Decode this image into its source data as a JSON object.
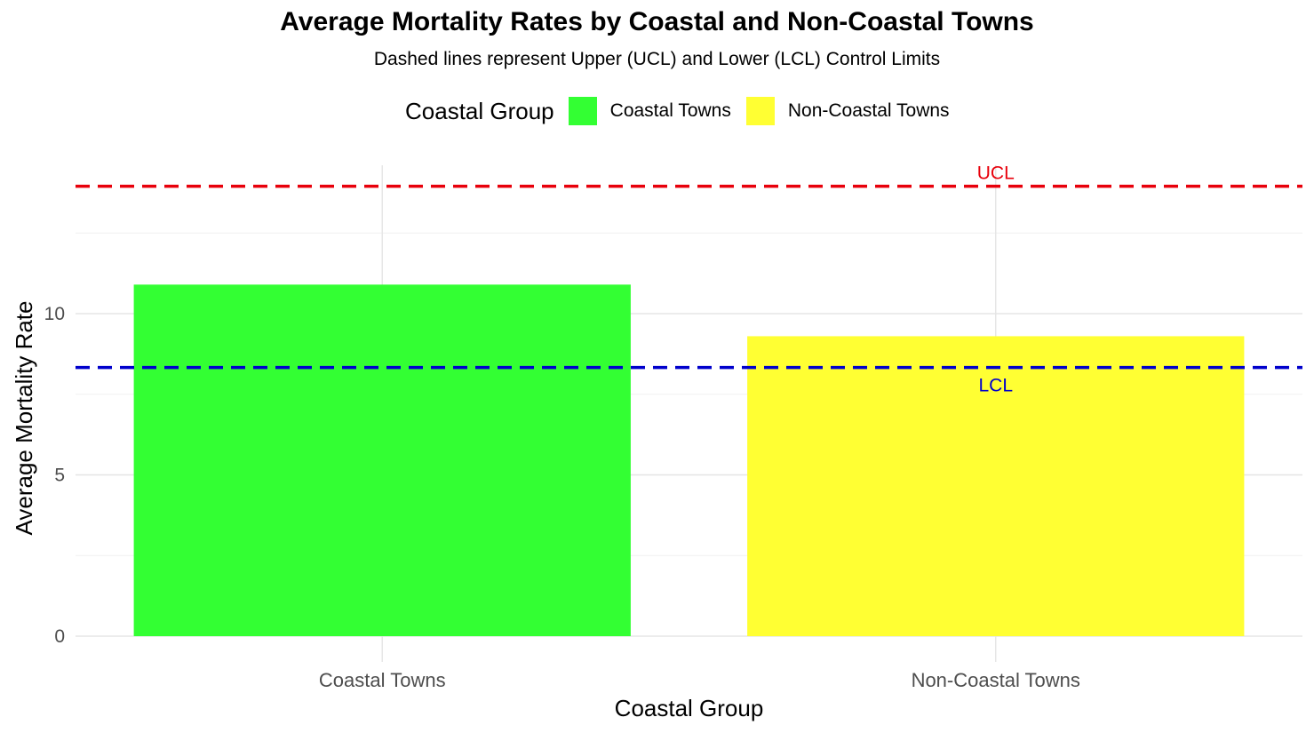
{
  "chart_data": {
    "type": "bar",
    "title": "Average Mortality Rates by Coastal and Non-Coastal Towns",
    "subtitle": "Dashed lines represent Upper (UCL) and Lower (LCL) Control Limits",
    "xlabel": "Coastal Group",
    "ylabel": "Average Mortality Rate",
    "categories": [
      "Coastal Towns",
      "Non-Coastal Towns"
    ],
    "values": [
      10.9,
      9.3
    ],
    "colors": [
      "#33ff33",
      "#ffff33"
    ],
    "ylim": [
      0,
      14.7
    ],
    "yticks": [
      0,
      5,
      10
    ],
    "grid": true,
    "legend": {
      "title": "Coastal Group",
      "position": "top",
      "entries": [
        "Coastal Towns",
        "Non-Coastal Towns"
      ]
    },
    "reference_lines": [
      {
        "label": "UCL",
        "value": 13.95,
        "color": "#e8000b"
      },
      {
        "label": "LCL",
        "value": 8.33,
        "color": "#0000cc"
      }
    ]
  }
}
